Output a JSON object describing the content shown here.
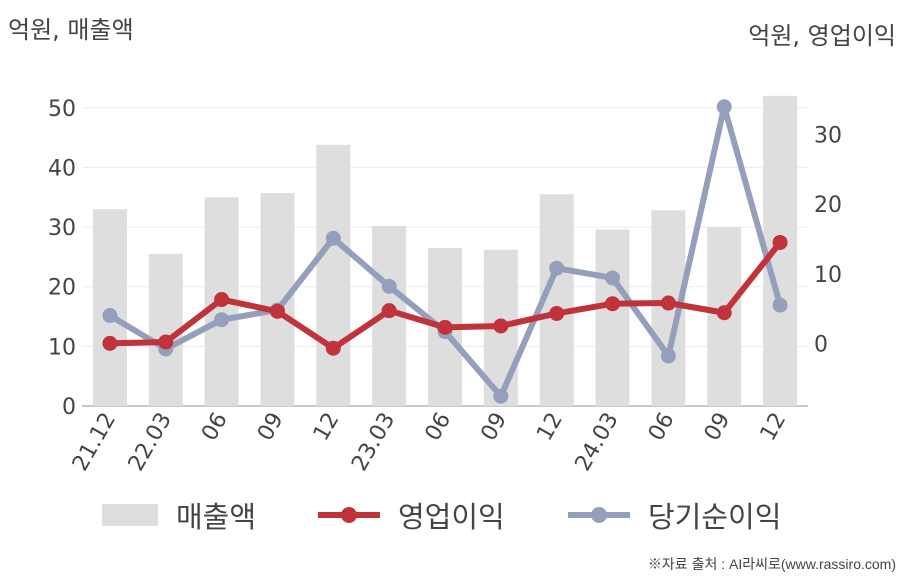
{
  "units": {
    "left": "억원, 매출액",
    "right": "억원, 영업이익"
  },
  "source": "※자료 출처 : AI라씨로(www.rassiro.com)",
  "chart_data": {
    "type": "bar+line",
    "categories": [
      "21.12",
      "22.03",
      "06",
      "09",
      "12",
      "23.03",
      "06",
      "09",
      "12",
      "24.03",
      "06",
      "09",
      "12"
    ],
    "left_axis": {
      "ylim": [
        0,
        56
      ],
      "ticks": [
        0,
        10,
        20,
        30,
        40,
        50
      ]
    },
    "right_axis": {
      "ylim": [
        -9,
        39
      ],
      "ticks": [
        0,
        10,
        20,
        30
      ]
    },
    "series": [
      {
        "name": "매출액",
        "kind": "bar",
        "axis": "left",
        "color": "#dedede",
        "values": [
          33,
          25.5,
          35,
          35.7,
          43.8,
          30.2,
          26.5,
          26.2,
          35.5,
          29.6,
          32.8,
          30,
          52
        ]
      },
      {
        "name": "영업이익",
        "kind": "line",
        "axis": "right",
        "color": "#c0333a",
        "values": [
          0,
          0.2,
          6.3,
          4.6,
          -0.7,
          4.7,
          2.3,
          2.5,
          4.3,
          5.7,
          5.8,
          4.4,
          14.5
        ]
      },
      {
        "name": "당기순이익",
        "kind": "line",
        "axis": "right",
        "color": "#94a0bb",
        "values": [
          4,
          -0.8,
          3.4,
          4.8,
          15.1,
          8.2,
          1.7,
          -7.6,
          10.8,
          9.4,
          -1.8,
          34,
          5.5
        ]
      }
    ],
    "legend": "bottom",
    "grid": true
  }
}
